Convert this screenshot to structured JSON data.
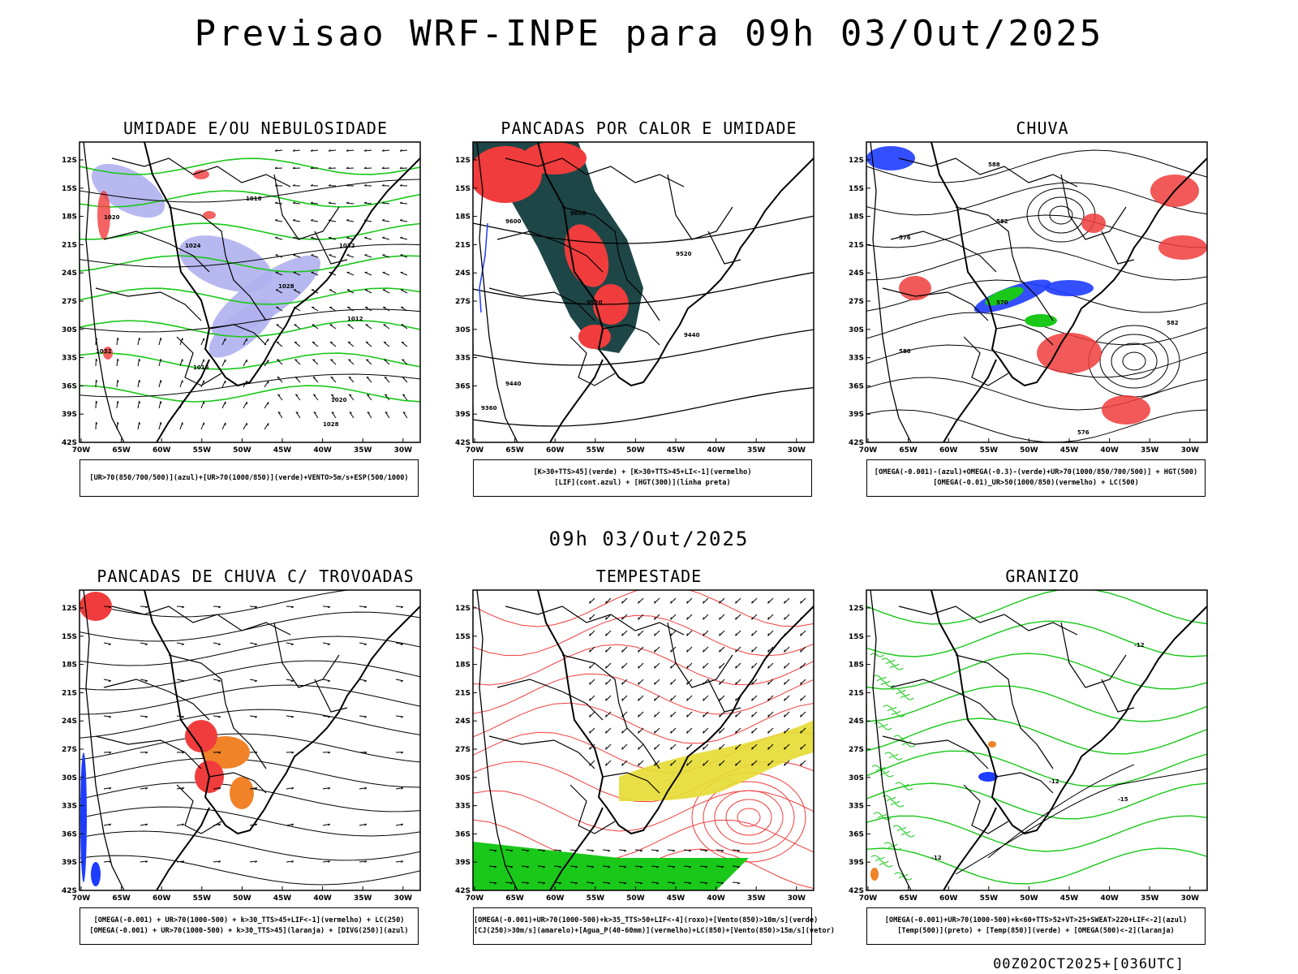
{
  "header": {
    "title": "Previsao WRF-INPE  para 09h 03/Out/2025"
  },
  "mid_title": "09h 03/Out/2025",
  "footer": "00Z02OCT2025+[036UTC]",
  "axes": {
    "lat_ticks": [
      "12S",
      "15S",
      "18S",
      "21S",
      "24S",
      "27S",
      "30S",
      "33S",
      "36S",
      "39S",
      "42S"
    ],
    "lon_ticks": [
      "70W",
      "65W",
      "60W",
      "55W",
      "50W",
      "45W",
      "40W",
      "35W",
      "30W"
    ]
  },
  "colors": {
    "blue_shade": "#b0b0f0",
    "green": "#19c819",
    "red": "#f03c3c",
    "dark_teal": "#1e4646",
    "orange": "#f08228",
    "yellow": "#e6dc32",
    "blue": "#1e3cff"
  },
  "panels": [
    {
      "title": "UMIDADE E/OU NEBULOSIDADE",
      "legend": [
        "[UR>70(850/700/500)](azul)+[UR>70(1000/850)](verde)+VENTO>5m/s+ESP(500/1000)"
      ],
      "contour_labels": [
        "1016",
        "1020",
        "1024",
        "1028",
        "1032",
        "1012",
        "1016",
        "1020",
        "1028",
        "1032"
      ]
    },
    {
      "title": "PANCADAS POR CALOR E UMIDADE",
      "legend": [
        "[K>30+TTS>45](verde) + [K>30+TTS>45+LI<-1](vermelho)",
        "[LIF](cont.azul) + [HGT(300)](linha preta)"
      ],
      "contour_labels": [
        "9600",
        "9520",
        "9440",
        "9360",
        "9600",
        "9520",
        "9440"
      ]
    },
    {
      "title": "CHUVA",
      "legend": [
        "[OMEGA(-0.001)-(azul)+OMEGA(-0.3)-(verde)+UR>70(1000/850/700/500)] + HGT(500)",
        "[OMEGA(-0.01)_UR>50(1000/850)(vermelho) + LC(500)"
      ],
      "contour_labels": [
        "588",
        "582",
        "576",
        "570",
        "588",
        "582",
        "576"
      ]
    },
    {
      "title": "PANCADAS DE CHUVA C/ TROVOADAS",
      "legend": [
        "[OMEGA(-0.001) + UR>70(1000-500) + k>30_TTS>45+LIF<-1](vermelho) + LC(250)",
        "[OMEGA(-0.001) + UR>70(1000-500) + k>30_TTS>45](laranja) + [DIVG(250)](azul)"
      ],
      "contour_labels": []
    },
    {
      "title": "TEMPESTADE",
      "legend": [
        "[OMEGA(-0.001)+UR>70(1000-500)+k>35_TTS>50+LIF<-4](roxo)+[Vento(850)>10m/s](verde)",
        "[CJ(250)>30m/s](amarelo)+[Agua_P(40-60mm)](vermelho)+LC(850)+[Vento(850)>15m/s](vetor)"
      ],
      "contour_labels": []
    },
    {
      "title": "GRANIZO",
      "legend": [
        "[OMEGA(-0.001)+UR>70(1000-500)+k<60+TTS>52+VT>25+SWEAT>220+LIF<-2](azul)",
        "[Temp(500)](preto) + [Temp(850)](verde) + [OMEGA(500)<-2](laranja)"
      ],
      "contour_labels": [
        "-12",
        "-12",
        "-15",
        "-12"
      ]
    }
  ]
}
